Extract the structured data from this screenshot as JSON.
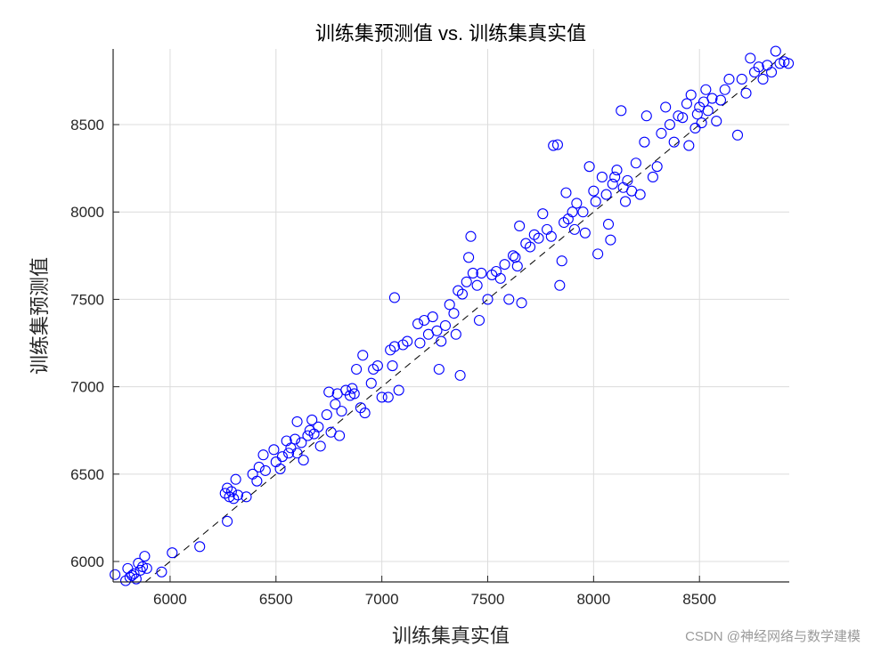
{
  "chart_data": {
    "type": "scatter",
    "title": "训练集预测值 vs. 训练集真实值",
    "xlabel": "训练集真实值",
    "ylabel": "训练集预测值",
    "xlim": [
      5731,
      8924
    ],
    "ylim": [
      5883,
      8933
    ],
    "xticks": [
      6000,
      6500,
      7000,
      7500,
      8000,
      8500
    ],
    "yticks": [
      6000,
      6500,
      7000,
      7500,
      8000,
      8500
    ],
    "grid": true,
    "marker": "open-circle",
    "marker_color": "#0000ff",
    "reference_line": {
      "type": "y=x",
      "style": "dashed",
      "color": "#000000"
    },
    "points": [
      [
        5740,
        5925
      ],
      [
        5790,
        5890
      ],
      [
        5800,
        5960
      ],
      [
        5810,
        5910
      ],
      [
        5830,
        5930
      ],
      [
        5850,
        5990
      ],
      [
        5860,
        5950
      ],
      [
        5870,
        5970
      ],
      [
        5880,
        6030
      ],
      [
        5840,
        5900
      ],
      [
        5820,
        5920
      ],
      [
        5890,
        5960
      ],
      [
        5960,
        5940
      ],
      [
        6010,
        6050
      ],
      [
        6140,
        6085
      ],
      [
        6270,
        6230
      ],
      [
        6260,
        6390
      ],
      [
        6270,
        6420
      ],
      [
        6280,
        6370
      ],
      [
        6300,
        6360
      ],
      [
        6320,
        6380
      ],
      [
        6310,
        6470
      ],
      [
        6290,
        6400
      ],
      [
        6360,
        6370
      ],
      [
        6390,
        6500
      ],
      [
        6410,
        6460
      ],
      [
        6420,
        6540
      ],
      [
        6440,
        6610
      ],
      [
        6450,
        6520
      ],
      [
        6490,
        6640
      ],
      [
        6500,
        6570
      ],
      [
        6520,
        6530
      ],
      [
        6530,
        6600
      ],
      [
        6550,
        6690
      ],
      [
        6560,
        6620
      ],
      [
        6570,
        6650
      ],
      [
        6590,
        6700
      ],
      [
        6600,
        6620
      ],
      [
        6620,
        6680
      ],
      [
        6630,
        6580
      ],
      [
        6650,
        6720
      ],
      [
        6660,
        6750
      ],
      [
        6670,
        6810
      ],
      [
        6680,
        6730
      ],
      [
        6700,
        6770
      ],
      [
        6710,
        6660
      ],
      [
        6600,
        6800
      ],
      [
        6740,
        6840
      ],
      [
        6760,
        6740
      ],
      [
        6750,
        6970
      ],
      [
        6780,
        6900
      ],
      [
        6790,
        6960
      ],
      [
        6800,
        6720
      ],
      [
        6810,
        6860
      ],
      [
        6830,
        6980
      ],
      [
        6850,
        6950
      ],
      [
        6860,
        6990
      ],
      [
        6870,
        6960
      ],
      [
        6880,
        7100
      ],
      [
        6900,
        6880
      ],
      [
        6910,
        7180
      ],
      [
        6920,
        6850
      ],
      [
        6950,
        7020
      ],
      [
        6960,
        7100
      ],
      [
        6980,
        7120
      ],
      [
        7000,
        6940
      ],
      [
        7030,
        6940
      ],
      [
        7040,
        7210
      ],
      [
        7060,
        7230
      ],
      [
        7060,
        7510
      ],
      [
        7080,
        6980
      ],
      [
        7100,
        7240
      ],
      [
        7120,
        7260
      ],
      [
        7050,
        7120
      ],
      [
        7170,
        7360
      ],
      [
        7180,
        7250
      ],
      [
        7200,
        7380
      ],
      [
        7220,
        7300
      ],
      [
        7240,
        7400
      ],
      [
        7260,
        7320
      ],
      [
        7270,
        7100
      ],
      [
        7280,
        7260
      ],
      [
        7300,
        7350
      ],
      [
        7320,
        7470
      ],
      [
        7340,
        7420
      ],
      [
        7350,
        7300
      ],
      [
        7360,
        7550
      ],
      [
        7370,
        7065
      ],
      [
        7380,
        7530
      ],
      [
        7400,
        7600
      ],
      [
        7410,
        7740
      ],
      [
        7420,
        7860
      ],
      [
        7430,
        7650
      ],
      [
        7450,
        7580
      ],
      [
        7460,
        7380
      ],
      [
        7470,
        7650
      ],
      [
        7500,
        7500
      ],
      [
        7520,
        7640
      ],
      [
        7540,
        7660
      ],
      [
        7560,
        7620
      ],
      [
        7580,
        7700
      ],
      [
        7600,
        7500
      ],
      [
        7620,
        7750
      ],
      [
        7630,
        7740
      ],
      [
        7640,
        7690
      ],
      [
        7650,
        7920
      ],
      [
        7660,
        7480
      ],
      [
        7680,
        7820
      ],
      [
        7700,
        7800
      ],
      [
        7720,
        7870
      ],
      [
        7740,
        7850
      ],
      [
        7760,
        7990
      ],
      [
        7780,
        7900
      ],
      [
        7800,
        7860
      ],
      [
        7810,
        8380
      ],
      [
        7830,
        8385
      ],
      [
        7840,
        7580
      ],
      [
        7850,
        7720
      ],
      [
        7860,
        7940
      ],
      [
        7870,
        8110
      ],
      [
        7880,
        7960
      ],
      [
        7900,
        8000
      ],
      [
        7910,
        7900
      ],
      [
        7920,
        8050
      ],
      [
        7950,
        8000
      ],
      [
        7960,
        7880
      ],
      [
        7980,
        8260
      ],
      [
        8000,
        8120
      ],
      [
        8010,
        8060
      ],
      [
        8020,
        7760
      ],
      [
        8040,
        8200
      ],
      [
        8060,
        8100
      ],
      [
        8070,
        7930
      ],
      [
        8080,
        7840
      ],
      [
        8090,
        8160
      ],
      [
        8100,
        8200
      ],
      [
        8110,
        8240
      ],
      [
        8130,
        8580
      ],
      [
        8140,
        8140
      ],
      [
        8150,
        8060
      ],
      [
        8160,
        8180
      ],
      [
        8180,
        8120
      ],
      [
        8200,
        8280
      ],
      [
        8220,
        8100
      ],
      [
        8240,
        8400
      ],
      [
        8250,
        8550
      ],
      [
        8280,
        8200
      ],
      [
        8300,
        8260
      ],
      [
        8320,
        8450
      ],
      [
        8340,
        8600
      ],
      [
        8360,
        8500
      ],
      [
        8380,
        8400
      ],
      [
        8400,
        8550
      ],
      [
        8420,
        8540
      ],
      [
        8440,
        8620
      ],
      [
        8450,
        8380
      ],
      [
        8460,
        8670
      ],
      [
        8480,
        8480
      ],
      [
        8490,
        8560
      ],
      [
        8500,
        8600
      ],
      [
        8510,
        8510
      ],
      [
        8520,
        8630
      ],
      [
        8530,
        8700
      ],
      [
        8540,
        8580
      ],
      [
        8560,
        8650
      ],
      [
        8580,
        8520
      ],
      [
        8600,
        8640
      ],
      [
        8620,
        8700
      ],
      [
        8640,
        8760
      ],
      [
        8680,
        8440
      ],
      [
        8700,
        8760
      ],
      [
        8720,
        8680
      ],
      [
        8740,
        8880
      ],
      [
        8760,
        8800
      ],
      [
        8780,
        8830
      ],
      [
        8800,
        8760
      ],
      [
        8820,
        8840
      ],
      [
        8840,
        8800
      ],
      [
        8860,
        8920
      ],
      [
        8880,
        8850
      ],
      [
        8900,
        8860
      ],
      [
        8920,
        8850
      ]
    ]
  },
  "watermark": "CSDN @神经网络与数学建模"
}
